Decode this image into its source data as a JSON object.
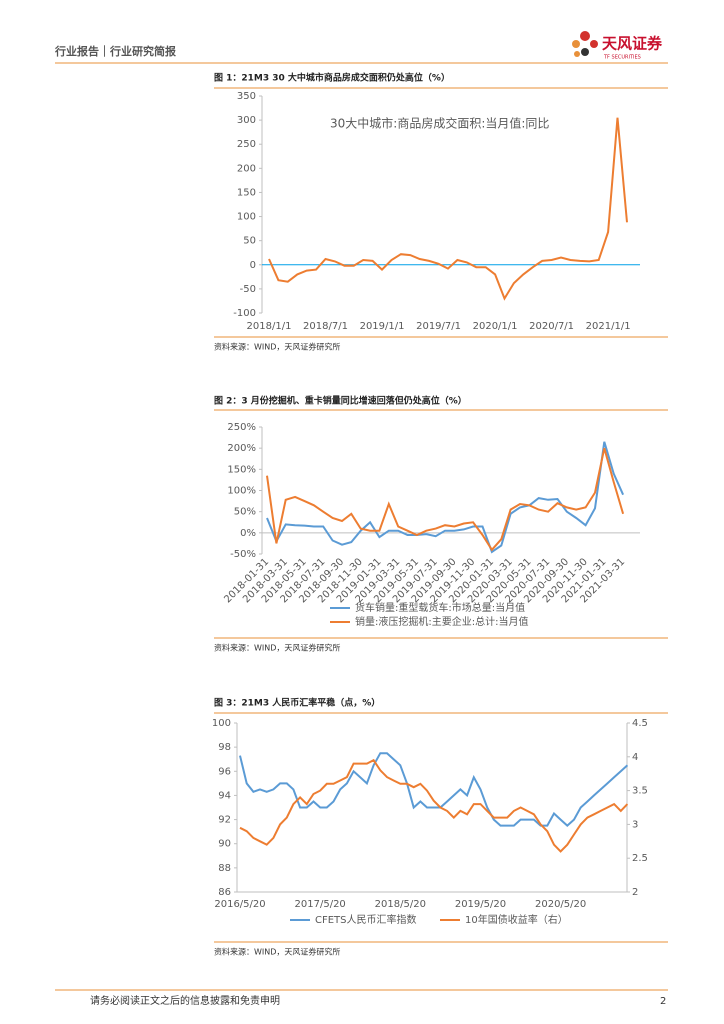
{
  "header": {
    "title": "行业报告｜行业研究简报",
    "logo": "天风证券",
    "logo_sub": "TF SECURITIES"
  },
  "figures": [
    {
      "caption": "图 1：21M3 30 大中城市商品房成交面积仍处高位（%）",
      "source": "资料来源：WIND，天风证券研究所",
      "chart": {
        "type": "line",
        "categories": [
          "2018/1/1",
          null,
          null,
          null,
          null,
          null,
          "2018/7/1",
          null,
          null,
          null,
          null,
          null,
          "2019/1/1",
          null,
          null,
          null,
          null,
          null,
          "2019/7/1",
          null,
          null,
          null,
          null,
          null,
          "2020/1/1",
          null,
          null,
          null,
          null,
          null,
          "2020/7/1",
          null,
          null,
          null,
          null,
          null,
          "2021/1/1",
          null,
          null
        ],
        "series": [
          {
            "name": "30大中城市:商品房成交面积:当月值:同比",
            "color": "#ed7d31",
            "values": [
              12,
              -32,
              -35,
              -20,
              -12,
              -10,
              12,
              7,
              -2,
              -2,
              10,
              8,
              -10,
              10,
              22,
              20,
              12,
              8,
              2,
              -8,
              10,
              5,
              -5,
              -5,
              -20,
              -70,
              -38,
              -20,
              -5,
              8,
              10,
              15,
              10,
              8,
              7,
              10,
              68,
              305,
              88
            ]
          }
        ],
        "ylim": [
          -100,
          350
        ],
        "yticks": [
          -100,
          -50,
          0,
          50,
          100,
          150,
          200,
          250,
          300,
          350
        ]
      }
    },
    {
      "caption": "图 2：3 月份挖掘机、重卡销量同比增速回落但仍处高位（%）",
      "source": "资料来源：WIND，天风证券研究所",
      "chart": {
        "type": "line",
        "categories": [
          "2018-01-31",
          null,
          "2018-03-31",
          null,
          "2018-05-31",
          null,
          "2018-07-31",
          null,
          "2018-09-30",
          null,
          "2018-11-30",
          null,
          "2019-01-31",
          null,
          "2019-03-31",
          null,
          "2019-05-31",
          null,
          "2019-07-31",
          null,
          "2019-09-30",
          null,
          "2019-11-30",
          null,
          "2020-01-31",
          null,
          "2020-03-31",
          null,
          "2020-05-31",
          null,
          "2020-07-31",
          null,
          "2020-09-30",
          null,
          "2020-11-30",
          null,
          "2021-01-31",
          null,
          "2021-03-31"
        ],
        "series": [
          {
            "name": "货车销量:重型载货车:市场总量:当月值",
            "color": "#5b9bd5",
            "values": [
              35,
              -20,
              20,
              18,
              17,
              15,
              15,
              -18,
              -28,
              -22,
              5,
              25,
              -10,
              5,
              5,
              -5,
              -5,
              -3,
              -8,
              5,
              5,
              8,
              15,
              15,
              -45,
              -30,
              45,
              60,
              65,
              82,
              78,
              80,
              50,
              35,
              18,
              58,
              215,
              140,
              90
            ]
          },
          {
            "name": "销量:液压挖掘机:主要企业:总计:当月值",
            "color": "#ed7d31",
            "values": [
              135,
              -25,
              78,
              85,
              75,
              65,
              50,
              35,
              28,
              45,
              10,
              5,
              5,
              68,
              15,
              5,
              -5,
              5,
              10,
              18,
              15,
              22,
              25,
              -5,
              -40,
              -15,
              55,
              68,
              65,
              55,
              50,
              70,
              60,
              55,
              60,
              95,
              200,
              120,
              45
            ]
          }
        ],
        "ylim": [
          -50,
          250
        ],
        "yticks": [
          {
            "value": -50,
            "label": "-50%"
          },
          {
            "value": 0,
            "label": "0%"
          },
          {
            "value": 50,
            "label": "50%"
          },
          {
            "value": 100,
            "label": "100%"
          },
          {
            "value": 150,
            "label": "150%"
          },
          {
            "value": 200,
            "label": "200%"
          },
          {
            "value": 250,
            "label": "250%"
          }
        ]
      }
    },
    {
      "caption": "图 3：21M3 人民币汇率平稳（点，%）",
      "source": "资料来源：WIND，天风证券研究所",
      "chart": {
        "type": "line",
        "categories": [
          "2016/5/20",
          null,
          null,
          null,
          null,
          null,
          null,
          null,
          null,
          null,
          null,
          null,
          "2017/5/20",
          null,
          null,
          null,
          null,
          null,
          null,
          null,
          null,
          null,
          null,
          null,
          "2018/5/20",
          null,
          null,
          null,
          null,
          null,
          null,
          null,
          null,
          null,
          null,
          null,
          "2019/5/20",
          null,
          null,
          null,
          null,
          null,
          null,
          null,
          null,
          null,
          null,
          null,
          "2020/5/20",
          null,
          null,
          null,
          null,
          null,
          null,
          null,
          null,
          null,
          null
        ],
        "series": [
          {
            "name": "CFETS人民币汇率指数",
            "color": "#5b9bd5",
            "values": [
              97.3,
              95,
              94.3,
              94.5,
              94.3,
              94.5,
              95,
              95,
              94.5,
              93,
              93,
              93.5,
              93,
              93,
              93.5,
              94.5,
              95,
              96,
              95.5,
              95,
              96.5,
              97.5,
              97.5,
              97,
              96.5,
              95,
              93,
              93.5,
              93,
              93,
              93,
              93.5,
              94,
              94.5,
              94,
              95.5,
              94.5,
              93,
              92,
              91.5,
              91.5,
              91.5,
              92,
              92,
              92,
              91.5,
              91.5,
              92.5,
              92,
              91.5,
              92,
              93,
              93.5,
              94,
              94.5,
              95,
              95.5,
              96,
              96.5
            ]
          },
          {
            "name": "10年国债收益率（右）",
            "color": "#ed7d31",
            "axis": "y2",
            "values": [
              2.95,
              2.9,
              2.8,
              2.75,
              2.7,
              2.8,
              3.0,
              3.1,
              3.3,
              3.4,
              3.3,
              3.45,
              3.5,
              3.6,
              3.6,
              3.65,
              3.7,
              3.9,
              3.9,
              3.9,
              3.95,
              3.8,
              3.7,
              3.65,
              3.6,
              3.6,
              3.55,
              3.6,
              3.5,
              3.35,
              3.25,
              3.2,
              3.1,
              3.2,
              3.15,
              3.3,
              3.3,
              3.2,
              3.1,
              3.1,
              3.1,
              3.2,
              3.25,
              3.2,
              3.15,
              3.0,
              2.9,
              2.7,
              2.6,
              2.7,
              2.85,
              3.0,
              3.1,
              3.15,
              3.2,
              3.25,
              3.3,
              3.2,
              3.3
            ]
          }
        ],
        "ylim": [
          86,
          100
        ],
        "yticks": [
          86,
          88,
          90,
          92,
          94,
          96,
          98,
          100
        ],
        "y2lim": [
          2,
          4.5
        ],
        "y2ticks": [
          2,
          2.5,
          3,
          3.5,
          4,
          4.5
        ]
      }
    }
  ],
  "footer": {
    "disclaimer": "请务必阅读正文之后的信息披露和免责申明",
    "page": "2"
  }
}
